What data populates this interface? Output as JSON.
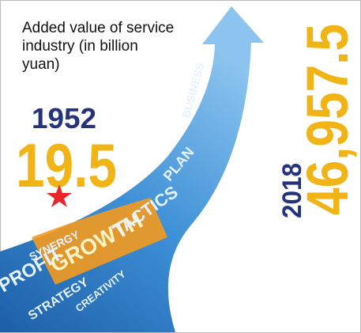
{
  "title": "Added value of service industry (in billion yuan)",
  "start": {
    "year": "1952",
    "value": "19.5"
  },
  "end": {
    "year": "2018",
    "value": "46,957.5"
  },
  "arrow_words": [
    "GROWTH",
    "PROFIT",
    "SYNERGY",
    "STRATEGY",
    "CREATIVITY",
    "TACTICS",
    "PLAN",
    "BUSINESS"
  ]
}
